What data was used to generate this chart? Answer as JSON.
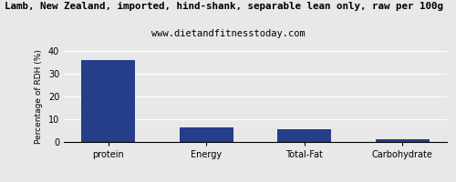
{
  "title": "Lamb, New Zealand, imported, hind-shank, separable lean only, raw per 100g",
  "subtitle": "www.dietandfitnesstoday.com",
  "categories": [
    "protein",
    "Energy",
    "Total-Fat",
    "Carbohydrate"
  ],
  "values": [
    36,
    6.5,
    5.5,
    1.2
  ],
  "bar_color": "#253e8a",
  "ylabel": "Percentage of RDH (%)",
  "ylim": [
    0,
    40
  ],
  "yticks": [
    0,
    10,
    20,
    30,
    40
  ],
  "background_color": "#e8e8e8",
  "plot_bg_color": "#e8e8e8",
  "grid_color": "#ffffff",
  "title_fontsize": 7.8,
  "subtitle_fontsize": 7.5,
  "ylabel_fontsize": 6.5,
  "tick_fontsize": 7
}
